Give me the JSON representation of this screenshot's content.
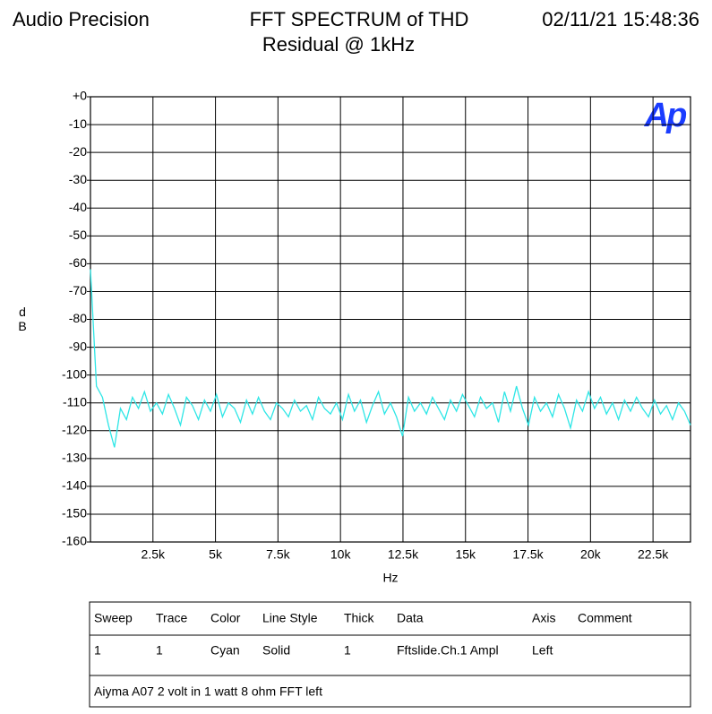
{
  "chart_data": {
    "type": "line",
    "brand": "Audio Precision",
    "title": "FFT SPECTRUM of THD",
    "subtitle": "Residual @ 1kHz",
    "timestamp": "02/11/21 15:48:36",
    "logo": "Ap",
    "xlabel": "Hz",
    "ylabel": "dB",
    "color": "#2ee6e6",
    "grid": true,
    "xlim": [
      0,
      24000
    ],
    "ylim": [
      -160,
      0
    ],
    "xticks": [
      {
        "value": 2500,
        "label": "2.5k"
      },
      {
        "value": 5000,
        "label": "5k"
      },
      {
        "value": 7500,
        "label": "7.5k"
      },
      {
        "value": 10000,
        "label": "10k"
      },
      {
        "value": 12500,
        "label": "12.5k"
      },
      {
        "value": 15000,
        "label": "15k"
      },
      {
        "value": 17500,
        "label": "17.5k"
      },
      {
        "value": 20000,
        "label": "20k"
      },
      {
        "value": 22500,
        "label": "22.5k"
      }
    ],
    "yticks": [
      {
        "value": 0,
        "label": "+0"
      },
      -10,
      -20,
      -30,
      -40,
      -50,
      -60,
      -70,
      -80,
      -90,
      -100,
      -110,
      -120,
      -130,
      -140,
      -150,
      -160
    ],
    "x": [
      0,
      240,
      480,
      720,
      960,
      1200,
      1440,
      1680,
      1920,
      2160,
      2400,
      2640,
      2880,
      3120,
      3360,
      3600,
      3840,
      4080,
      4320,
      4560,
      4800,
      5040,
      5280,
      5520,
      5760,
      6000,
      6240,
      6480,
      6720,
      6960,
      7200,
      7440,
      7680,
      7920,
      8160,
      8400,
      8640,
      8880,
      9120,
      9360,
      9600,
      9840,
      10080,
      10320,
      10560,
      10800,
      11040,
      11280,
      11520,
      11760,
      12000,
      12240,
      12480,
      12720,
      12960,
      13200,
      13440,
      13680,
      13920,
      14160,
      14400,
      14640,
      14880,
      15120,
      15360,
      15600,
      15840,
      16080,
      16320,
      16560,
      16800,
      17040,
      17280,
      17520,
      17760,
      18000,
      18240,
      18480,
      18720,
      18960,
      19200,
      19440,
      19680,
      19920,
      20160,
      20400,
      20640,
      20880,
      21120,
      21360,
      21600,
      21840,
      22080,
      22320,
      22560,
      22800,
      23040,
      23280,
      23520,
      23760,
      24000
    ],
    "values": [
      -62,
      -104,
      -108,
      -118,
      -126,
      -112,
      -116,
      -108,
      -112,
      -106,
      -113,
      -110,
      -114,
      -107,
      -112,
      -118,
      -108,
      -111,
      -116,
      -109,
      -113,
      -107,
      -115,
      -110,
      -112,
      -117,
      -109,
      -114,
      -108,
      -113,
      -116,
      -110,
      -112,
      -115,
      -109,
      -113,
      -111,
      -116,
      -108,
      -112,
      -114,
      -110,
      -116,
      -107,
      -113,
      -109,
      -117,
      -111,
      -106,
      -114,
      -110,
      -115,
      -122,
      -108,
      -113,
      -110,
      -114,
      -108,
      -112,
      -116,
      -109,
      -113,
      -107,
      -111,
      -115,
      -108,
      -112,
      -110,
      -117,
      -106,
      -113,
      -104,
      -112,
      -118,
      -108,
      -113,
      -110,
      -115,
      -107,
      -112,
      -119,
      -109,
      -113,
      -106,
      -112,
      -108,
      -114,
      -110,
      -116,
      -109,
      -113,
      -108,
      -112,
      -115,
      -109,
      -114,
      -111,
      -116,
      -110,
      -113,
      -118
    ],
    "legend_table": {
      "headers": [
        "Sweep",
        "Trace",
        "Color",
        "Line Style",
        "Thick",
        "Data",
        "Axis",
        "Comment"
      ],
      "rows": [
        [
          "1",
          "1",
          "Cyan",
          "Solid",
          "1",
          "Fftslide.Ch.1 Ampl",
          "Left"
        ]
      ],
      "note": "Aiyma A07 2 volt in 1 watt 8 ohm FFT left"
    }
  }
}
